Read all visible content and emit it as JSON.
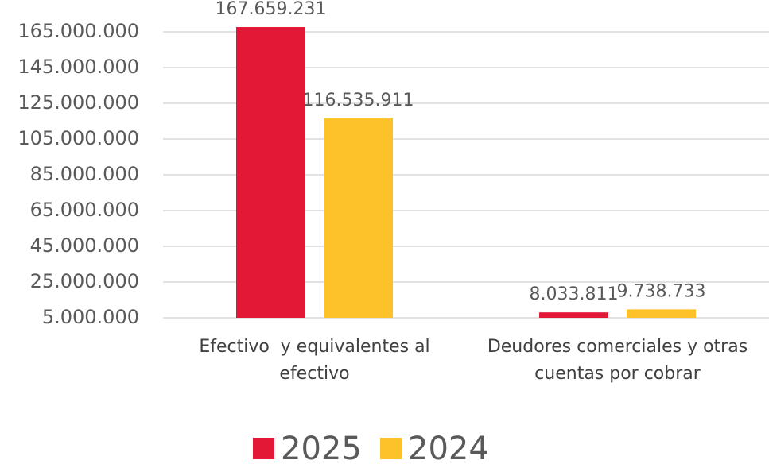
{
  "chart_data": {
    "type": "bar",
    "categories": [
      "Efectivo  y equivalentes al efectivo",
      "Deudores comerciales y otras cuentas por cobrar"
    ],
    "series": [
      {
        "name": "2025",
        "color": "#e31837",
        "values": [
          167659231,
          8033811
        ],
        "value_labels": [
          "167.659.231",
          "8.033.811"
        ]
      },
      {
        "name": "2024",
        "color": "#fdc12a",
        "values": [
          116535911,
          9738733
        ],
        "value_labels": [
          "116.535.911",
          "9.738.733"
        ]
      }
    ],
    "ylim": [
      5000000,
      165000000
    ],
    "yticks": [
      {
        "value": 5000000,
        "label": "5.000.000"
      },
      {
        "value": 25000000,
        "label": "25.000.000"
      },
      {
        "value": 45000000,
        "label": "45.000.000"
      },
      {
        "value": 65000000,
        "label": "65.000.000"
      },
      {
        "value": 85000000,
        "label": "85.000.000"
      },
      {
        "value": 105000000,
        "label": "105.000.000"
      },
      {
        "value": 125000000,
        "label": "125.000.000"
      },
      {
        "value": 145000000,
        "label": "145.000.000"
      },
      {
        "value": 165000000,
        "label": "165.000.000"
      }
    ],
    "grid": true,
    "legend": "bottom"
  }
}
